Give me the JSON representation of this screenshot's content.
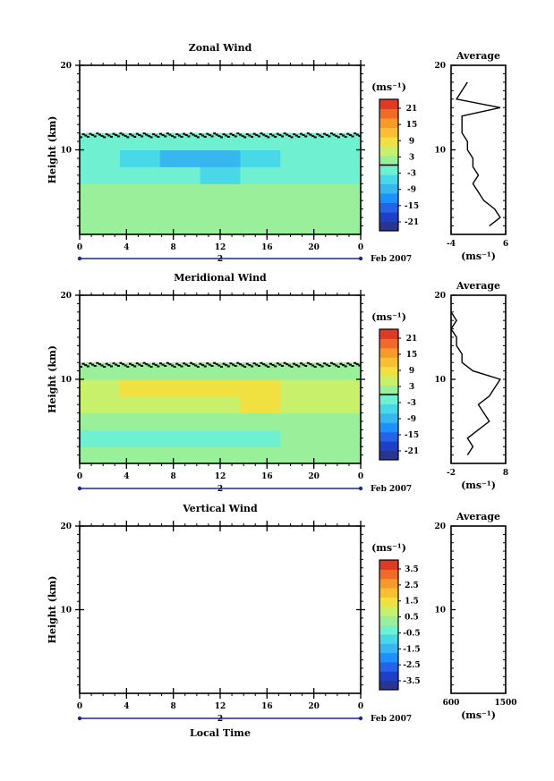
{
  "panels": [
    {
      "title": "Zonal Wind",
      "ylabel": "Height (km)",
      "yticks": [
        "20",
        "10"
      ],
      "xticks": [
        "0",
        "4",
        "8",
        "12",
        "16",
        "20",
        "0"
      ],
      "day_label": "2",
      "date_label": "Feb 2007",
      "cbar_unit": "(ms⁻¹)",
      "cbar_ticks": [
        "21",
        "15",
        "9",
        "3",
        "-3",
        "-9",
        "-15",
        "-21"
      ],
      "avg_title": "Average",
      "avg_yticks": [
        "20",
        "10"
      ],
      "avg_xticks": [
        "-4",
        "6"
      ],
      "avg_unit": "(ms⁻¹)"
    },
    {
      "title": "Meridional Wind",
      "ylabel": "Height (km)",
      "yticks": [
        "20",
        "10"
      ],
      "xticks": [
        "0",
        "4",
        "8",
        "12",
        "16",
        "20",
        "0"
      ],
      "day_label": "2",
      "date_label": "Feb 2007",
      "cbar_unit": "(ms⁻¹)",
      "cbar_ticks": [
        "21",
        "15",
        "9",
        "3",
        "-3",
        "-9",
        "-15",
        "-21"
      ],
      "avg_title": "Average",
      "avg_yticks": [
        "20",
        "10"
      ],
      "avg_xticks": [
        "-2",
        "8"
      ],
      "avg_unit": "(ms⁻¹)"
    },
    {
      "title": "Vertical Wind",
      "ylabel": "Height (km)",
      "yticks": [
        "20",
        "10"
      ],
      "xticks": [
        "0",
        "4",
        "8",
        "12",
        "16",
        "20",
        "0"
      ],
      "day_label": "2",
      "date_label": "Feb 2007",
      "cbar_unit": "(ms⁻¹)",
      "cbar_ticks": [
        "3.5",
        "2.5",
        "1.5",
        "0.5",
        "-0.5",
        "-1.5",
        "-2.5",
        "-3.5"
      ],
      "avg_title": "Average",
      "avg_yticks": [
        "20",
        "10"
      ],
      "avg_xticks": [
        "600",
        "1500"
      ],
      "avg_unit": "(ms⁻¹)"
    }
  ],
  "xlabel": "Local Time",
  "colormap": [
    "#283593",
    "#1e40c8",
    "#2563eb",
    "#1e90ff",
    "#38b6f0",
    "#48d8e8",
    "#6ff0d0",
    "#9af09a",
    "#c8f06a",
    "#f0e040",
    "#f8c030",
    "#f89a2a",
    "#f06a28",
    "#e03a24"
  ],
  "chart_data": [
    {
      "type": "heatmap",
      "title": "Zonal Wind",
      "xlabel": "",
      "ylabel": "Height (km)",
      "xlim": [
        0,
        24
      ],
      "ylim": [
        0,
        20
      ],
      "color_range": [
        -24,
        24
      ],
      "x": [
        0,
        4,
        8,
        12,
        16,
        20,
        24
      ],
      "y": [
        1,
        3,
        5,
        7,
        9,
        11
      ],
      "z": [
        [
          2,
          3,
          3,
          3,
          2,
          2,
          2
        ],
        [
          2,
          2,
          3,
          3,
          2,
          2,
          2
        ],
        [
          0,
          1,
          2,
          2,
          1,
          1,
          1
        ],
        [
          -1,
          -2,
          -3,
          -6,
          -3,
          -1,
          -1
        ],
        [
          -3,
          -6,
          -9,
          -9,
          -4,
          -1,
          -1
        ],
        [
          -1,
          -2,
          -3,
          -3,
          -2,
          -1,
          -1
        ]
      ],
      "average_profile": {
        "xlim": [
          -4,
          6
        ],
        "height": [
          1,
          2,
          3,
          4,
          5,
          6,
          7,
          8,
          9,
          10,
          11,
          12,
          13,
          14,
          15,
          16,
          17,
          18
        ],
        "value": [
          3,
          5,
          4,
          2,
          1,
          0,
          1,
          0,
          0,
          -1,
          -1,
          -2,
          -2,
          -2,
          5,
          -3,
          -2,
          -1
        ]
      }
    },
    {
      "type": "heatmap",
      "title": "Meridional Wind",
      "xlabel": "",
      "ylabel": "Height (km)",
      "xlim": [
        0,
        24
      ],
      "ylim": [
        0,
        20
      ],
      "color_range": [
        -24,
        24
      ],
      "x": [
        0,
        4,
        8,
        12,
        16,
        20,
        24
      ],
      "y": [
        1,
        3,
        5,
        7,
        9,
        11
      ],
      "z": [
        [
          1,
          1,
          2,
          1,
          1,
          1,
          1
        ],
        [
          -1,
          -2,
          -2,
          -2,
          -1,
          0,
          0
        ],
        [
          2,
          2,
          3,
          3,
          3,
          2,
          1
        ],
        [
          4,
          5,
          6,
          6,
          7,
          5,
          4
        ],
        [
          6,
          7,
          8,
          9,
          8,
          6,
          6
        ],
        [
          1,
          2,
          2,
          2,
          2,
          2,
          1
        ]
      ],
      "average_profile": {
        "xlim": [
          -2,
          8
        ],
        "height": [
          1,
          2,
          3,
          4,
          5,
          6,
          7,
          8,
          9,
          10,
          11,
          12,
          13,
          14,
          15,
          16,
          17,
          18
        ],
        "value": [
          1,
          2,
          1,
          3,
          5,
          4,
          3,
          5,
          6,
          7,
          2,
          0,
          0,
          -1,
          -1,
          -2,
          -1,
          -2
        ]
      }
    },
    {
      "type": "heatmap",
      "title": "Vertical Wind",
      "xlabel": "Local Time",
      "ylabel": "Height (km)",
      "xlim": [
        0,
        24
      ],
      "ylim": [
        0,
        20
      ],
      "color_range": [
        -4,
        4
      ],
      "x": [],
      "y": [],
      "z": [],
      "average_profile": {
        "xlim": [
          600,
          1500
        ],
        "height": [],
        "value": []
      }
    }
  ]
}
